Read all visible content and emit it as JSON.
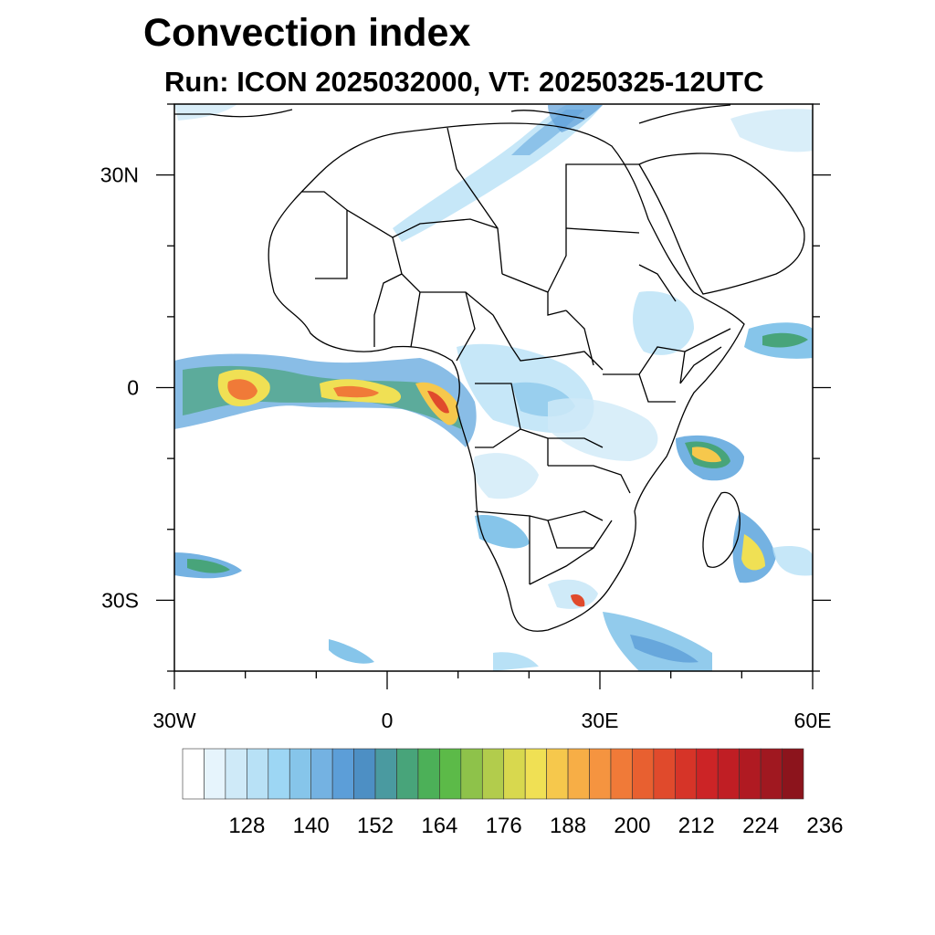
{
  "title": "Convection index",
  "subtitle": "Run: ICON 2025032000,  VT: 20250325-12UTC",
  "map": {
    "lon_range": [
      -30,
      60
    ],
    "lat_range": [
      -40,
      40
    ],
    "lon_ticks": [
      {
        "value": -30,
        "label": "30W"
      },
      {
        "value": 0,
        "label": "0"
      },
      {
        "value": 30,
        "label": "30E"
      },
      {
        "value": 60,
        "label": "60E"
      }
    ],
    "lat_ticks": [
      {
        "value": 30,
        "label": "30N"
      },
      {
        "value": 0,
        "label": "0"
      },
      {
        "value": -30,
        "label": "30S"
      }
    ],
    "coastline_color": "#000000"
  },
  "colorbar": {
    "colors": [
      "#ffffff",
      "#e6f4fc",
      "#cfeaf8",
      "#b8e1f6",
      "#9dd6f4",
      "#86c5ea",
      "#74b2e2",
      "#5c9ed8",
      "#4d8fc4",
      "#4a9aa0",
      "#48a47a",
      "#4cb058",
      "#5cba48",
      "#8ec24a",
      "#b2cc4c",
      "#d8d84e",
      "#f0e054",
      "#f6c84c",
      "#f7ae46",
      "#f59440",
      "#f07a38",
      "#e86030",
      "#e04a2c",
      "#d63428",
      "#cc2426",
      "#c01e24",
      "#b01a22",
      "#a01820",
      "#8c141c"
    ],
    "labels": [
      "128",
      "140",
      "152",
      "164",
      "176",
      "188",
      "200",
      "212",
      "224",
      "236"
    ]
  }
}
